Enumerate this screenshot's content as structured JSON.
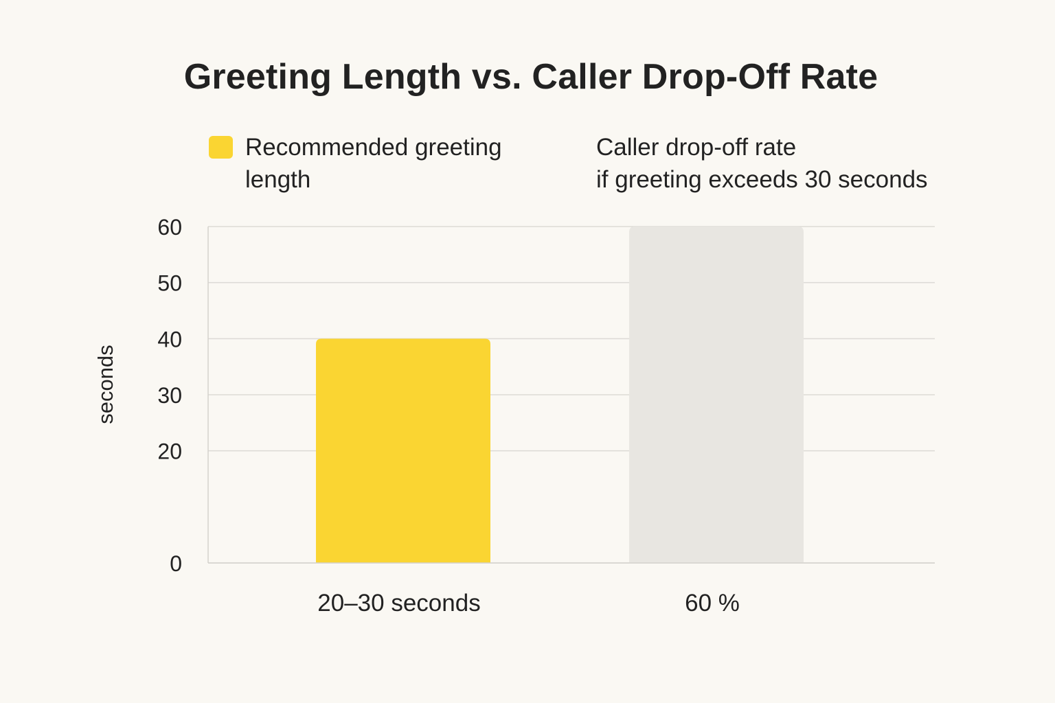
{
  "chart_data": {
    "type": "bar",
    "title": "Greeting Length vs. Caller Drop-Off Rate",
    "ylabel": "seconds",
    "ylim": [
      0,
      60
    ],
    "yticks": [
      0,
      20,
      30,
      40,
      50,
      60
    ],
    "grid": true,
    "categories": [
      "20–30 seconds",
      "60 %"
    ],
    "values": [
      40,
      60
    ],
    "bar_colors": [
      "#fad532",
      "#e8e6e1"
    ],
    "legend": [
      {
        "lines": [
          "Recommended greeting",
          "length"
        ],
        "color": "#fad532",
        "swatch": true
      },
      {
        "lines": [
          "Caller drop-off rate",
          "if greeting exceeds 30 seconds"
        ],
        "swatch": false
      }
    ]
  }
}
